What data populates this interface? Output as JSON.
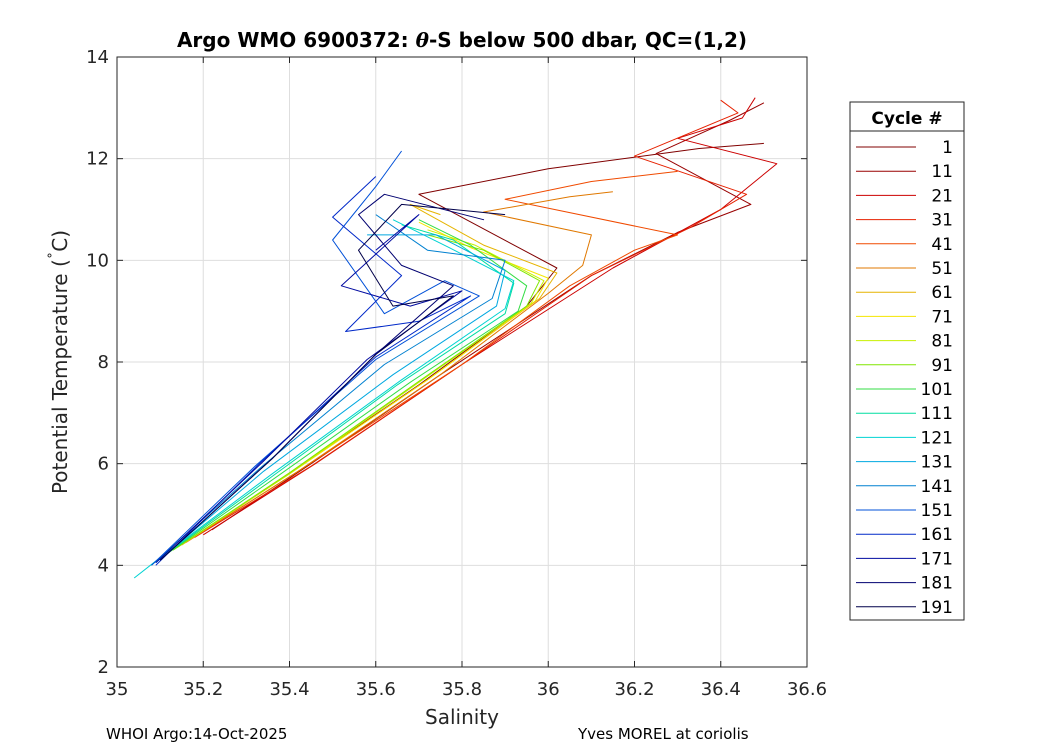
{
  "chart_data": {
    "type": "line",
    "title_prefix": "Argo WMO 6900372: ",
    "title_theta": "θ",
    "title_suffix": "-S below 500 dbar,  QC=(1,2)",
    "xlabel": "Salinity",
    "ylabel_main": "Potential Temperature (",
    "ylabel_deg": "˚",
    "ylabel_end": "C)",
    "xlim": [
      35.0,
      36.6
    ],
    "ylim": [
      2,
      14
    ],
    "xticks": [
      35,
      35.2,
      35.4,
      35.6,
      35.8,
      36,
      36.2,
      36.4,
      36.6
    ],
    "xtick_labels": [
      "35",
      "35.2",
      "35.4",
      "35.6",
      "35.8",
      "36",
      "36.2",
      "36.4",
      "36.6"
    ],
    "yticks": [
      2,
      4,
      6,
      8,
      10,
      12,
      14
    ],
    "ytick_labels": [
      "2",
      "4",
      "6",
      "8",
      "10",
      "12",
      "14"
    ],
    "grid": true,
    "legend_title": "Cycle #",
    "legend_placement": "outside-right",
    "series": [
      {
        "name": "1",
        "color": "#800000",
        "values": [
          [
            35.24,
            4.9
          ],
          [
            35.45,
            6.1
          ],
          [
            35.7,
            7.55
          ],
          [
            35.95,
            9.1
          ],
          [
            36.02,
            9.85
          ],
          [
            35.7,
            11.3
          ],
          [
            36.0,
            11.8
          ],
          [
            36.35,
            12.2
          ],
          [
            36.5,
            12.3
          ]
        ]
      },
      {
        "name": "11",
        "color": "#990000",
        "values": [
          [
            35.22,
            4.7
          ],
          [
            35.45,
            6.0
          ],
          [
            35.75,
            7.75
          ],
          [
            36.1,
            9.7
          ],
          [
            36.3,
            10.55
          ],
          [
            36.47,
            11.1
          ],
          [
            36.25,
            12.1
          ],
          [
            36.42,
            12.75
          ],
          [
            36.5,
            13.1
          ]
        ]
      },
      {
        "name": "21",
        "color": "#cc0000",
        "values": [
          [
            35.2,
            4.6
          ],
          [
            35.46,
            6.0
          ],
          [
            35.8,
            7.95
          ],
          [
            36.15,
            9.85
          ],
          [
            36.4,
            11.0
          ],
          [
            36.53,
            11.9
          ],
          [
            36.3,
            12.4
          ],
          [
            36.45,
            12.8
          ],
          [
            36.48,
            13.2
          ]
        ]
      },
      {
        "name": "31",
        "color": "#e62100",
        "values": [
          [
            35.18,
            4.55
          ],
          [
            35.45,
            5.95
          ],
          [
            35.8,
            7.95
          ],
          [
            36.1,
            9.7
          ],
          [
            36.33,
            10.65
          ],
          [
            36.46,
            11.3
          ],
          [
            36.2,
            12.05
          ],
          [
            36.44,
            12.9
          ],
          [
            36.4,
            13.15
          ]
        ]
      },
      {
        "name": "41",
        "color": "#f04a00",
        "values": [
          [
            35.16,
            4.45
          ],
          [
            35.42,
            5.85
          ],
          [
            35.8,
            7.95
          ],
          [
            36.05,
            9.5
          ],
          [
            36.2,
            10.2
          ],
          [
            36.3,
            10.5
          ],
          [
            35.9,
            11.2
          ],
          [
            36.1,
            11.55
          ],
          [
            36.3,
            11.75
          ]
        ]
      },
      {
        "name": "51",
        "color": "#e07800",
        "values": [
          [
            35.15,
            4.4
          ],
          [
            35.42,
            5.85
          ],
          [
            35.75,
            7.75
          ],
          [
            36.0,
            9.35
          ],
          [
            36.08,
            9.9
          ],
          [
            36.1,
            10.5
          ],
          [
            35.85,
            10.95
          ],
          [
            36.05,
            11.25
          ],
          [
            36.15,
            11.35
          ]
        ]
      },
      {
        "name": "61",
        "color": "#e6b400",
        "values": [
          [
            35.15,
            4.4
          ],
          [
            35.4,
            5.8
          ],
          [
            35.72,
            7.65
          ],
          [
            35.98,
            9.25
          ],
          [
            36.02,
            9.75
          ],
          [
            35.85,
            10.3
          ],
          [
            35.68,
            11.1
          ],
          [
            35.75,
            10.9
          ]
        ]
      },
      {
        "name": "71",
        "color": "#f5e600",
        "values": [
          [
            35.14,
            4.35
          ],
          [
            35.4,
            5.8
          ],
          [
            35.72,
            7.65
          ],
          [
            35.97,
            9.2
          ],
          [
            36.0,
            9.65
          ],
          [
            35.82,
            10.25
          ],
          [
            35.7,
            10.75
          ]
        ]
      },
      {
        "name": "81",
        "color": "#c8f000",
        "values": [
          [
            35.13,
            4.3
          ],
          [
            35.4,
            5.8
          ],
          [
            35.7,
            7.6
          ],
          [
            35.96,
            9.15
          ],
          [
            35.99,
            9.6
          ],
          [
            35.83,
            10.3
          ],
          [
            35.72,
            10.6
          ]
        ]
      },
      {
        "name": "91",
        "color": "#80e600",
        "values": [
          [
            35.13,
            4.3
          ],
          [
            35.4,
            5.82
          ],
          [
            35.7,
            7.62
          ],
          [
            35.95,
            9.1
          ],
          [
            35.98,
            9.6
          ],
          [
            35.85,
            10.2
          ],
          [
            35.72,
            10.5
          ]
        ]
      },
      {
        "name": "101",
        "color": "#33dd44",
        "values": [
          [
            35.12,
            4.25
          ],
          [
            35.38,
            5.8
          ],
          [
            35.68,
            7.6
          ],
          [
            35.93,
            9.0
          ],
          [
            35.95,
            9.5
          ],
          [
            35.82,
            10.3
          ],
          [
            35.7,
            10.8
          ]
        ]
      },
      {
        "name": "111",
        "color": "#00dda0",
        "values": [
          [
            35.11,
            4.2
          ],
          [
            35.36,
            5.75
          ],
          [
            35.65,
            7.55
          ],
          [
            35.9,
            8.95
          ],
          [
            35.92,
            9.55
          ],
          [
            35.78,
            10.4
          ],
          [
            35.66,
            10.7
          ]
        ]
      },
      {
        "name": "121",
        "color": "#00d2d2",
        "values": [
          [
            35.04,
            3.75
          ],
          [
            35.1,
            4.15
          ],
          [
            35.36,
            5.8
          ],
          [
            35.66,
            7.65
          ],
          [
            35.9,
            9.05
          ],
          [
            35.92,
            9.6
          ],
          [
            35.77,
            10.25
          ],
          [
            35.64,
            10.8
          ]
        ]
      },
      {
        "name": "131",
        "color": "#00a8e0",
        "values": [
          [
            35.09,
            4.05
          ],
          [
            35.34,
            5.85
          ],
          [
            35.64,
            7.75
          ],
          [
            35.88,
            9.1
          ],
          [
            35.9,
            9.8
          ],
          [
            35.74,
            10.5
          ],
          [
            35.58,
            10.5
          ]
        ]
      },
      {
        "name": "141",
        "color": "#0080d0",
        "values": [
          [
            35.08,
            4.0
          ],
          [
            35.33,
            5.9
          ],
          [
            35.62,
            7.95
          ],
          [
            35.87,
            9.25
          ],
          [
            35.9,
            10.0
          ],
          [
            35.72,
            10.2
          ],
          [
            35.6,
            10.9
          ]
        ]
      },
      {
        "name": "151",
        "color": "#0050d8",
        "values": [
          [
            35.08,
            4.0
          ],
          [
            35.32,
            5.95
          ],
          [
            35.6,
            8.05
          ],
          [
            35.84,
            9.3
          ],
          [
            35.76,
            9.6
          ],
          [
            35.62,
            8.95
          ],
          [
            35.5,
            10.4
          ],
          [
            35.6,
            11.45
          ],
          [
            35.66,
            12.15
          ]
        ]
      },
      {
        "name": "161",
        "color": "#0028c8",
        "values": [
          [
            35.09,
            4.0
          ],
          [
            35.33,
            6.0
          ],
          [
            35.6,
            8.1
          ],
          [
            35.82,
            9.3
          ],
          [
            35.7,
            8.8
          ],
          [
            35.53,
            8.6
          ],
          [
            35.66,
            9.7
          ],
          [
            35.5,
            10.85
          ],
          [
            35.6,
            11.65
          ]
        ]
      },
      {
        "name": "171",
        "color": "#000aa0",
        "values": [
          [
            35.09,
            4.05
          ],
          [
            35.34,
            6.05
          ],
          [
            35.58,
            8.05
          ],
          [
            35.8,
            9.4
          ],
          [
            35.68,
            9.1
          ],
          [
            35.52,
            9.5
          ],
          [
            35.7,
            10.9
          ],
          [
            35.6,
            10.2
          ]
        ]
      },
      {
        "name": "181",
        "color": "#000070",
        "values": [
          [
            35.1,
            4.1
          ],
          [
            35.36,
            6.1
          ],
          [
            35.6,
            8.15
          ],
          [
            35.78,
            9.5
          ],
          [
            35.66,
            9.9
          ],
          [
            35.56,
            10.9
          ],
          [
            35.62,
            11.3
          ],
          [
            35.85,
            10.8
          ],
          [
            35.62,
            11.3
          ]
        ]
      },
      {
        "name": "191",
        "color": "#00004a",
        "values": [
          [
            35.1,
            4.1
          ],
          [
            35.36,
            6.1
          ],
          [
            35.6,
            8.15
          ],
          [
            35.78,
            9.3
          ],
          [
            35.64,
            9.1
          ],
          [
            35.56,
            10.2
          ],
          [
            35.66,
            11.1
          ],
          [
            35.9,
            10.9
          ]
        ]
      }
    ]
  },
  "footer": {
    "left": "WHOI Argo:14-Oct-2025",
    "right": "Yves MOREL at coriolis"
  }
}
